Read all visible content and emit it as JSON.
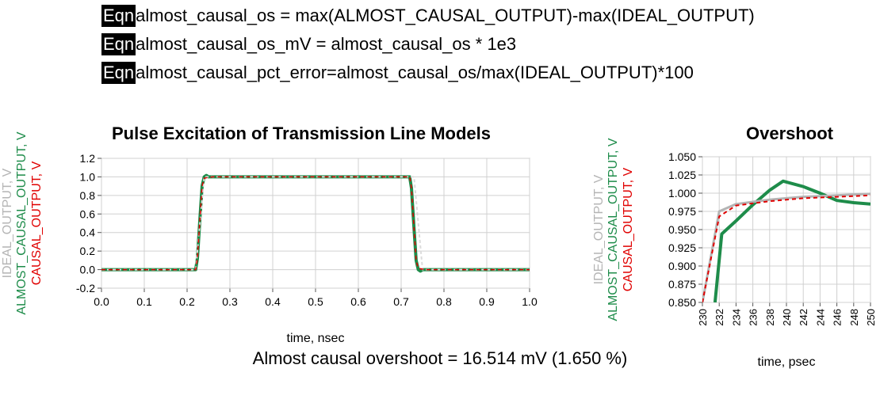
{
  "equations": [
    {
      "tag": "Eqn",
      "text": "almost_causal_os = max(ALMOST_CAUSAL_OUTPUT)-max(IDEAL_OUTPUT)"
    },
    {
      "tag": "Eqn",
      "text": "almost_causal_os_mV = almost_causal_os * 1e3"
    },
    {
      "tag": "Eqn",
      "text": "almost_causal_pct_error=almost_causal_os/max(IDEAL_OUTPUT)*100"
    }
  ],
  "summary": "Almost causal overshoot = 16.514 mV (1.650 %)",
  "colors": {
    "ideal": "#b4b4b4",
    "almost_causal": "#1e8c4a",
    "causal": "#e00000"
  },
  "chart_data": [
    {
      "type": "line",
      "title": "Pulse Excitation of Transmission Line Models",
      "xlabel": "time, nsec",
      "ylabels": [
        "IDEAL_OUTPUT, V",
        "ALMOST_CAUSAL_OUTPUT, V",
        "CAUSAL_OUTPUT, V"
      ],
      "xlim": [
        0.0,
        1.0
      ],
      "ylim": [
        -0.2,
        1.2
      ],
      "xticks": [
        "0.0",
        "0.1",
        "0.2",
        "0.3",
        "0.4",
        "0.5",
        "0.6",
        "0.7",
        "0.8",
        "0.9",
        "1.0"
      ],
      "yticks": [
        "1.2",
        "1.0",
        "0.8",
        "0.6",
        "0.4",
        "0.2",
        "0.0",
        "-0.2"
      ],
      "grid": true,
      "series": [
        {
          "name": "IDEAL_OUTPUT",
          "x": [
            0.0,
            0.22,
            0.24,
            0.73,
            0.75,
            1.0
          ],
          "y": [
            0.0,
            0.0,
            1.0,
            1.0,
            0.0,
            0.0
          ]
        },
        {
          "name": "ALMOST_CAUSAL_OUTPUT",
          "x": [
            0.0,
            0.22,
            0.224,
            0.23,
            0.235,
            0.24,
            0.245,
            0.25,
            0.26,
            0.72,
            0.724,
            0.73,
            0.735,
            0.74,
            0.745,
            0.75,
            0.76,
            1.0
          ],
          "y": [
            0.0,
            0.0,
            0.12,
            0.55,
            0.9,
            1.0,
            1.016,
            1.0,
            1.0,
            1.0,
            0.88,
            0.45,
            0.1,
            0.0,
            -0.016,
            0.0,
            0.0,
            0.0
          ]
        },
        {
          "name": "CAUSAL_OUTPUT",
          "x": [
            0.0,
            0.22,
            0.224,
            0.23,
            0.235,
            0.24,
            0.25,
            0.26,
            0.72,
            0.724,
            0.73,
            0.735,
            0.74,
            0.75,
            0.76,
            1.0
          ],
          "y": [
            0.0,
            0.0,
            0.12,
            0.55,
            0.9,
            0.985,
            0.995,
            1.0,
            1.0,
            0.88,
            0.45,
            0.1,
            0.015,
            0.005,
            0.0,
            0.0
          ]
        }
      ]
    },
    {
      "type": "line",
      "title": "Overshoot",
      "xlabel": "time, psec",
      "ylabels": [
        "IDEAL_OUTPUT, V",
        "ALMOST_CAUSAL_OUTPUT, V",
        "CAUSAL_OUTPUT, V"
      ],
      "xlim": [
        230,
        250
      ],
      "ylim": [
        0.85,
        1.05
      ],
      "xticks": [
        "230",
        "232",
        "234",
        "236",
        "238",
        "240",
        "242",
        "244",
        "246",
        "248",
        "250"
      ],
      "yticks": [
        "1.050",
        "1.025",
        "1.000",
        "0.975",
        "0.950",
        "0.925",
        "0.900",
        "0.875",
        "0.850"
      ],
      "grid": true,
      "series": [
        {
          "name": "IDEAL_OUTPUT",
          "x": [
            230,
            232,
            234,
            236,
            238,
            240,
            242,
            244,
            246,
            248,
            250
          ],
          "y": [
            0.85,
            0.975,
            0.985,
            0.988,
            0.991,
            0.993,
            0.995,
            0.996,
            0.997,
            0.998,
            0.999
          ]
        },
        {
          "name": "ALMOST_CAUSAL_OUTPUT",
          "x": [
            231.5,
            232.3,
            234,
            236,
            238,
            239.6,
            242,
            244,
            246,
            248,
            250
          ],
          "y": [
            0.85,
            0.944,
            0.962,
            0.984,
            1.004,
            1.0165,
            1.009,
            1.0,
            0.99,
            0.987,
            0.985
          ]
        },
        {
          "name": "CAUSAL_OUTPUT",
          "x": [
            230,
            232,
            234,
            236,
            238,
            240,
            242,
            244,
            246,
            248,
            250
          ],
          "y": [
            0.85,
            0.968,
            0.983,
            0.986,
            0.989,
            0.991,
            0.993,
            0.994,
            0.995,
            0.996,
            0.997
          ]
        }
      ]
    }
  ]
}
